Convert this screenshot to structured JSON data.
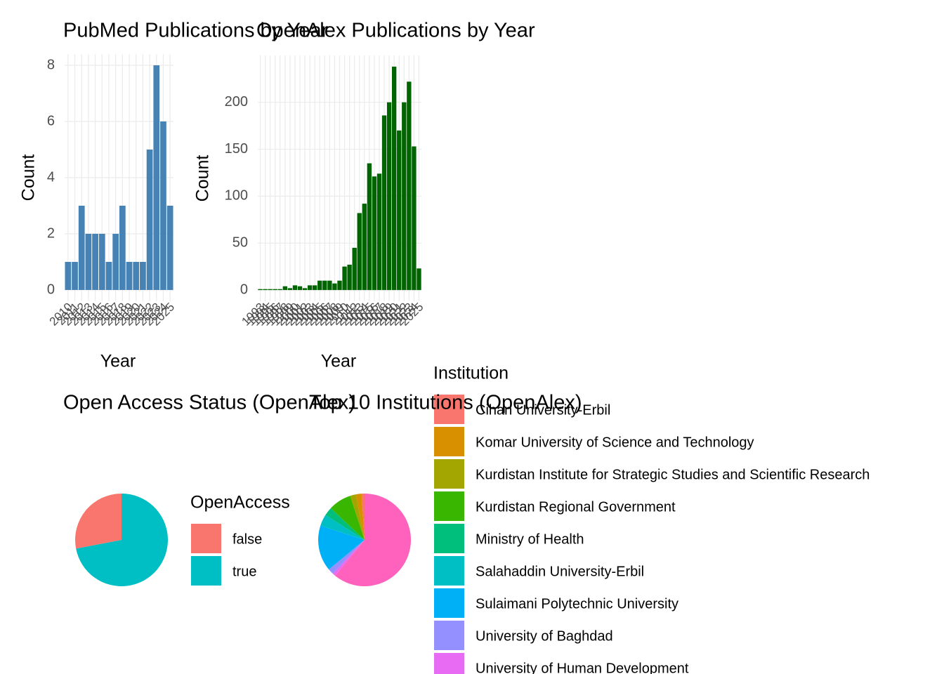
{
  "chart_data": [
    {
      "type": "bar",
      "title": "PubMed Publications by Year",
      "xlabel": "Year",
      "ylabel": "Count",
      "color": "#4682b4",
      "categories": [
        "2010",
        "2011",
        "2012",
        "2013",
        "2014",
        "2015",
        "2016",
        "2017",
        "2018",
        "2019",
        "2020",
        "2021",
        "2022",
        "2023",
        "2024",
        "2025"
      ],
      "values": [
        1,
        1,
        3,
        2,
        2,
        2,
        1,
        2,
        3,
        1,
        1,
        1,
        5,
        8,
        6,
        3
      ],
      "ylim": [
        -0.4,
        8.4
      ],
      "yticks": [
        0,
        2,
        4,
        6,
        8
      ],
      "grid": true
    },
    {
      "type": "bar",
      "title": "OpenAlex Publications by Year",
      "xlabel": "Year",
      "ylabel": "Count",
      "color": "#006400",
      "categories": [
        "1993",
        "1994",
        "1995",
        "1996",
        "1997",
        "1998",
        "1999",
        "2000",
        "2001",
        "2002",
        "2003",
        "2004",
        "2005",
        "2006",
        "2007",
        "2008",
        "2009",
        "2010",
        "2011",
        "2012",
        "2013",
        "2014",
        "2015",
        "2016",
        "2017",
        "2018",
        "2019",
        "2020",
        "2021",
        "2022",
        "2023",
        "2024",
        "2025"
      ],
      "values": [
        1,
        1,
        1,
        1,
        1,
        4,
        2,
        5,
        4,
        2,
        5,
        5,
        10,
        10,
        10,
        7,
        10,
        25,
        27,
        45,
        82,
        92,
        135,
        121,
        124,
        186,
        200,
        238,
        170,
        200,
        222,
        153,
        23
      ],
      "ylim": [
        -11.9,
        249.9
      ],
      "yticks": [
        0,
        50,
        100,
        150,
        200
      ],
      "grid": true
    },
    {
      "type": "pie",
      "title": "Open Access Status (OpenAlex)",
      "legend_title": "OpenAccess",
      "categories": [
        "false",
        "true"
      ],
      "values": [
        28,
        72
      ],
      "colors": [
        "#f8766d",
        "#00bfc4"
      ]
    },
    {
      "type": "pie",
      "title": "Top 10 Institutions (OpenAlex)",
      "legend_title": "Institution",
      "categories": [
        "Cihan University-Erbil",
        "Komar University of Science and Technology",
        "Kurdistan Institute for Strategic Studies and Scientific Research",
        "Kurdistan Regional Government",
        "Ministry of Health",
        "Salahaddin University-Erbil",
        "Sulaimani Polytechnic University",
        "University of Baghdad",
        "University of Human Development",
        null
      ],
      "values": [
        1,
        2,
        2,
        8,
        3,
        4,
        16,
        2,
        1,
        61
      ],
      "colors": [
        "#f8766d",
        "#d89000",
        "#a3a500",
        "#39b600",
        "#00bf7d",
        "#00bfc4",
        "#00b0f6",
        "#9590ff",
        "#e76bf3",
        "#ff62bc"
      ]
    }
  ]
}
